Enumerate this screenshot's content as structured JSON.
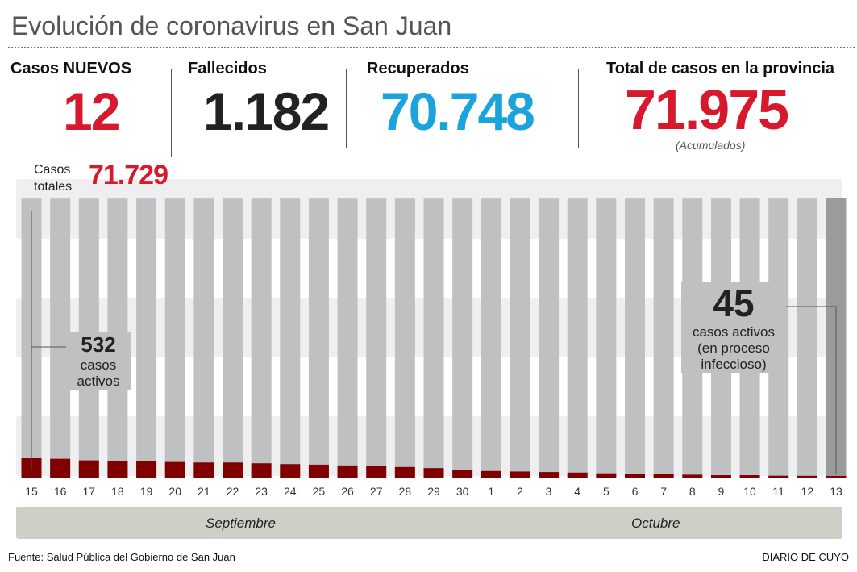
{
  "title": "Evolución de coronavirus en San Juan",
  "stats": {
    "new_label": "Casos NUEVOS",
    "new_value": "12",
    "deaths_label": "Fallecidos",
    "deaths_value": "1.182",
    "recovered_label": "Recuperados",
    "recovered_value": "70.748",
    "total_label": "Total de casos en la provincia",
    "total_value": "71.975",
    "total_note": "(Acumulados)"
  },
  "colors": {
    "red": "#d7192d",
    "blue": "#1aa3dc",
    "dark": "#222222",
    "active": "#800000",
    "bar": "#bfc0c2",
    "last_bar": "#9a9b9d"
  },
  "chart_data": {
    "type": "bar",
    "categories": [
      "15",
      "16",
      "17",
      "18",
      "19",
      "20",
      "21",
      "22",
      "23",
      "24",
      "25",
      "26",
      "27",
      "28",
      "29",
      "30",
      "1",
      "2",
      "3",
      "4",
      "5",
      "6",
      "7",
      "8",
      "9",
      "10",
      "11",
      "12",
      "13"
    ],
    "months": [
      "Septiembre",
      "Octubre"
    ],
    "series": [
      {
        "name": "Casos totales",
        "values": [
          71729,
          71729,
          71729,
          71729,
          71729,
          71729,
          71729,
          71729,
          71729,
          71729,
          71729,
          71729,
          71729,
          71729,
          71729,
          71729,
          71729,
          71729,
          71729,
          71729,
          71729,
          71729,
          71729,
          71729,
          71729,
          71729,
          71729,
          71729,
          71975
        ]
      },
      {
        "name": "casos activos",
        "values": [
          532,
          517,
          474,
          466,
          452,
          430,
          415,
          415,
          394,
          372,
          357,
          335,
          313,
          292,
          262,
          219,
          182,
          168,
          153,
          138,
          117,
          102,
          95,
          80,
          66,
          66,
          51,
          48,
          45
        ]
      }
    ],
    "annotations": {
      "total_label": "Casos totales",
      "total_value": "71.729",
      "first_active_value": "532",
      "first_active_label": "casos activos",
      "last_active_value": "45",
      "last_active_label": "casos activos (en proceso infeccioso)"
    }
  },
  "footer": {
    "source": "Fuente: Salud Pública del Gobierno de San Juan",
    "brand": "DIARIO DE CUYO"
  }
}
